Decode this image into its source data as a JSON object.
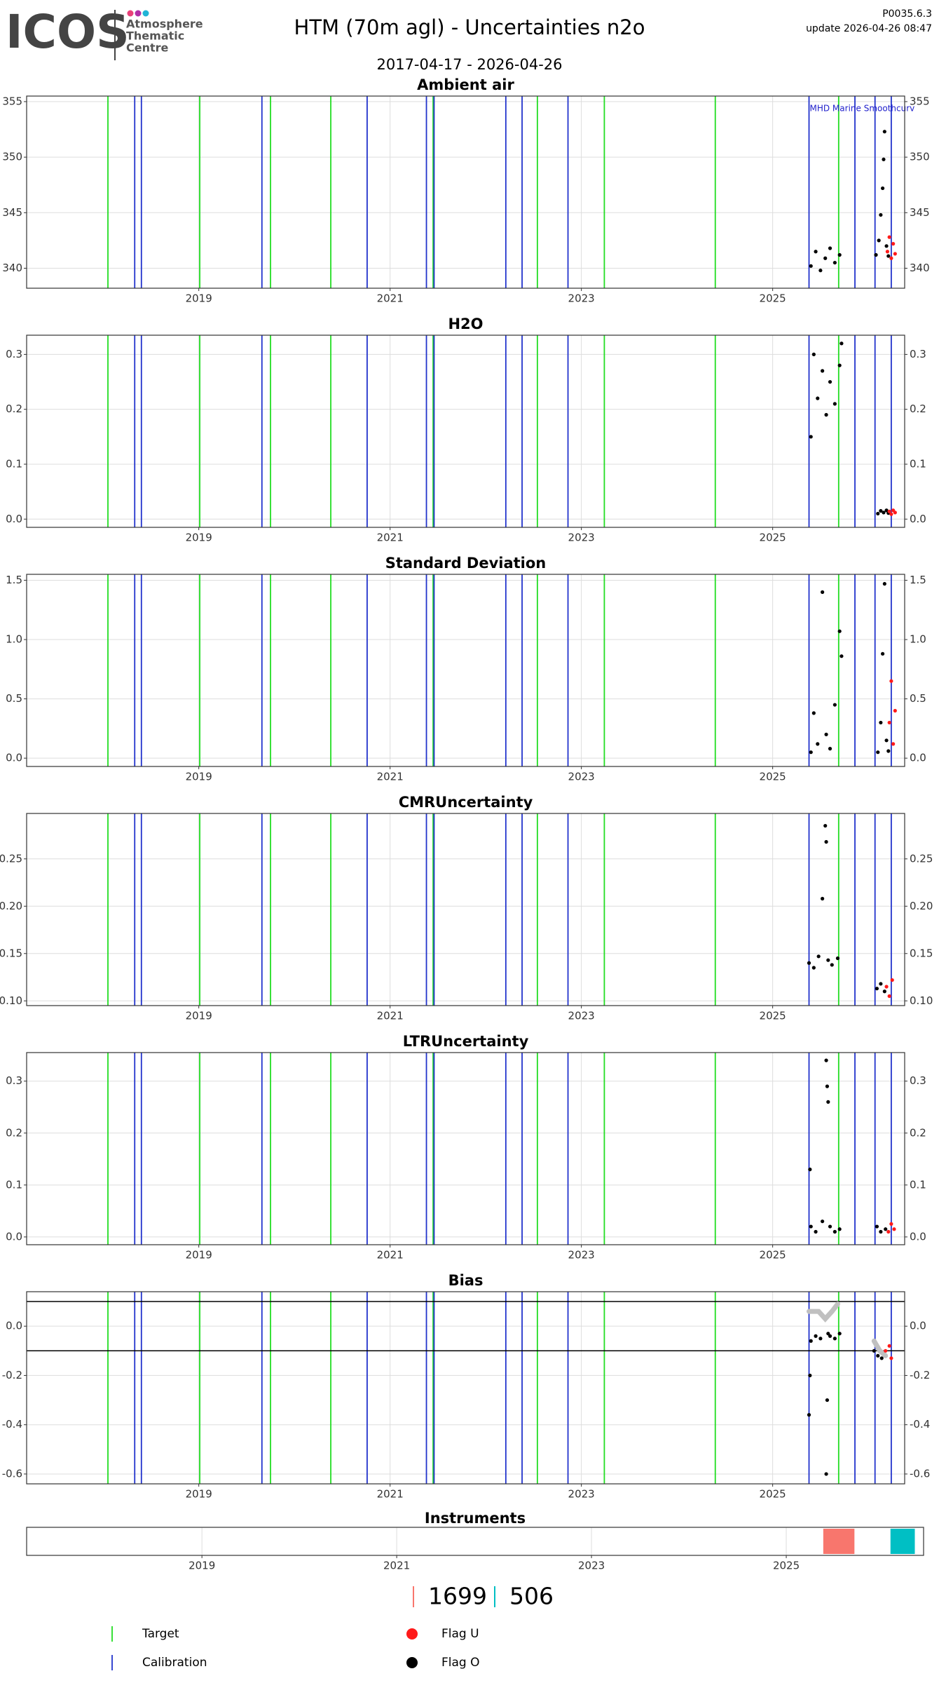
{
  "header": {
    "logo": "ICOS",
    "logo_sub": [
      "Atmosphere",
      "Thematic",
      "Centre"
    ],
    "title": "HTM  (70m agl) - Uncertainties n2o",
    "subtitle": "2017-04-17 - 2026-04-26",
    "version": "P0035.6.3",
    "update": "update  2026-04-26 08:47"
  },
  "reference_lines": {
    "target": {
      "name": "Target",
      "color": "#22dd22",
      "x": [
        2018.05,
        2019.01,
        2019.75,
        2020.38,
        2021.45,
        2022.54,
        2023.24,
        2024.4,
        2025.69
      ]
    },
    "calibration": {
      "name": "Calibration",
      "color": "#2233cc",
      "x": [
        2018.33,
        2018.4,
        2019.66,
        2020.76,
        2021.38,
        2021.46,
        2022.21,
        2022.38,
        2022.86,
        2025.38,
        2025.86,
        2026.07,
        2026.24
      ]
    }
  },
  "chart_data": [
    {
      "type": "scatter",
      "title": "Ambient air",
      "annotation": "MHD Marine Smoothcurv",
      "xlim": [
        2017.2,
        2026.38
      ],
      "xticks": [
        2019,
        2021,
        2023,
        2025
      ],
      "ylim": [
        338.2,
        355.5
      ],
      "yticks": [
        340,
        345,
        350,
        355
      ],
      "grid": true,
      "series": [
        {
          "name": "Flag O",
          "color": "#000000",
          "x": [
            2025.4,
            2025.45,
            2025.5,
            2025.55,
            2025.6,
            2025.65,
            2025.7,
            2026.08,
            2026.11,
            2026.13,
            2026.15,
            2026.16,
            2026.17,
            2026.19,
            2026.21
          ],
          "values": [
            340.2,
            341.5,
            339.8,
            340.9,
            341.8,
            340.5,
            341.2,
            341.2,
            342.5,
            344.8,
            347.2,
            349.8,
            352.3,
            342.0,
            341.1
          ]
        },
        {
          "name": "Flag U",
          "color": "#ff1a1a",
          "x": [
            2026.2,
            2026.22,
            2026.24,
            2026.26,
            2026.28
          ],
          "values": [
            341.5,
            342.8,
            340.9,
            342.2,
            341.3
          ]
        }
      ]
    },
    {
      "type": "scatter",
      "title": "H2O",
      "xlim": [
        2017.2,
        2026.38
      ],
      "xticks": [
        2019,
        2021,
        2023,
        2025
      ],
      "ylim": [
        -0.015,
        0.335
      ],
      "yticks": [
        {
          "value": 0,
          "label": "0.0"
        },
        0.1,
        0.2,
        0.3
      ],
      "grid": true,
      "series": [
        {
          "name": "Flag O",
          "color": "#000000",
          "x": [
            2025.4,
            2025.43,
            2025.47,
            2025.52,
            2025.56,
            2025.6,
            2025.65,
            2025.7,
            2025.72,
            2026.1,
            2026.13,
            2026.16,
            2026.19,
            2026.21
          ],
          "values": [
            0.15,
            0.3,
            0.22,
            0.27,
            0.19,
            0.25,
            0.21,
            0.28,
            0.32,
            0.01,
            0.015,
            0.012,
            0.016,
            0.011
          ]
        },
        {
          "name": "Flag U",
          "color": "#ff1a1a",
          "x": [
            2026.22,
            2026.24,
            2026.26,
            2026.28
          ],
          "values": [
            0.014,
            0.009,
            0.016,
            0.012
          ]
        }
      ]
    },
    {
      "type": "scatter",
      "title": "Standard Deviation",
      "xlim": [
        2017.2,
        2026.38
      ],
      "xticks": [
        2019,
        2021,
        2023,
        2025
      ],
      "ylim": [
        -0.07,
        1.55
      ],
      "yticks": [
        {
          "value": 0,
          "label": "0.0"
        },
        0.5,
        {
          "value": 1,
          "label": "1.0"
        },
        1.5
      ],
      "grid": true,
      "series": [
        {
          "name": "Flag O",
          "color": "#000000",
          "x": [
            2025.4,
            2025.43,
            2025.47,
            2025.52,
            2025.56,
            2025.6,
            2025.65,
            2025.7,
            2025.72,
            2026.1,
            2026.13,
            2026.15,
            2026.17,
            2026.19,
            2026.21
          ],
          "values": [
            0.05,
            0.38,
            0.12,
            1.4,
            0.2,
            0.08,
            0.45,
            1.07,
            0.86,
            0.05,
            0.3,
            0.88,
            1.47,
            0.15,
            0.06
          ]
        },
        {
          "name": "Flag U",
          "color": "#ff1a1a",
          "x": [
            2026.22,
            2026.24,
            2026.26,
            2026.28
          ],
          "values": [
            0.3,
            0.65,
            0.12,
            0.4
          ]
        }
      ]
    },
    {
      "type": "scatter",
      "title": "CMRUncertainty",
      "xlim": [
        2017.2,
        2026.38
      ],
      "xticks": [
        2019,
        2021,
        2023,
        2025
      ],
      "ylim": [
        0.095,
        0.298
      ],
      "yticks": [
        {
          "value": 0.1,
          "label": "0.10"
        },
        0.15,
        {
          "value": 0.2,
          "label": "0.20"
        },
        0.25
      ],
      "grid": true,
      "series": [
        {
          "name": "Flag O",
          "color": "#000000",
          "x": [
            2025.38,
            2025.43,
            2025.48,
            2025.52,
            2025.55,
            2025.56,
            2025.58,
            2025.62,
            2025.68,
            2026.09,
            2026.13,
            2026.17
          ],
          "values": [
            0.14,
            0.135,
            0.147,
            0.208,
            0.285,
            0.268,
            0.143,
            0.138,
            0.145,
            0.113,
            0.118,
            0.11
          ]
        },
        {
          "name": "Flag U",
          "color": "#ff1a1a",
          "x": [
            2026.19,
            2026.22,
            2026.25
          ],
          "values": [
            0.115,
            0.105,
            0.122
          ]
        }
      ]
    },
    {
      "type": "scatter",
      "title": "LTRUncertainty",
      "xlim": [
        2017.2,
        2026.38
      ],
      "xticks": [
        2019,
        2021,
        2023,
        2025
      ],
      "ylim": [
        -0.015,
        0.355
      ],
      "yticks": [
        {
          "value": 0,
          "label": "0.0"
        },
        0.1,
        0.2,
        0.3
      ],
      "grid": true,
      "series": [
        {
          "name": "Flag O",
          "color": "#000000",
          "x": [
            2025.39,
            2025.4,
            2025.45,
            2025.52,
            2025.56,
            2025.57,
            2025.58,
            2025.6,
            2025.65,
            2025.7,
            2026.09,
            2026.13,
            2026.18
          ],
          "values": [
            0.13,
            0.02,
            0.01,
            0.03,
            0.34,
            0.29,
            0.26,
            0.02,
            0.01,
            0.015,
            0.02,
            0.01,
            0.015
          ]
        },
        {
          "name": "Flag U",
          "color": "#ff1a1a",
          "x": [
            2026.21,
            2026.24,
            2026.27
          ],
          "values": [
            0.01,
            0.025,
            0.015
          ]
        }
      ]
    },
    {
      "type": "scatter",
      "title": "Bias",
      "xlim": [
        2017.2,
        2026.38
      ],
      "xticks": [
        2019,
        2021,
        2023,
        2025
      ],
      "ylim": [
        -0.64,
        0.14
      ],
      "yticks": [
        {
          "value": 0,
          "label": "0.0"
        },
        -0.2,
        -0.4,
        -0.6
      ],
      "grid": true,
      "hlines": [
        0.1,
        -0.1
      ],
      "series": [
        {
          "style": "line",
          "color": "#c0c0c0",
          "x": [
            2025.38,
            2025.48,
            2025.55,
            2025.62,
            2025.68,
            2025.9,
            2026.06,
            2026.12,
            2026.18
          ],
          "values": [
            0.06,
            0.06,
            0.03,
            0.06,
            0.09,
            null,
            -0.06,
            -0.1,
            -0.12
          ]
        },
        {
          "name": "Flag O",
          "color": "#000000",
          "x": [
            2025.38,
            2025.39,
            2025.4,
            2025.45,
            2025.5,
            2025.56,
            2025.57,
            2025.58,
            2025.6,
            2025.65,
            2025.7,
            2026.06,
            2026.1,
            2026.14
          ],
          "values": [
            -0.36,
            -0.2,
            -0.06,
            -0.04,
            -0.05,
            -0.6,
            -0.3,
            -0.03,
            -0.04,
            -0.05,
            -0.03,
            -0.1,
            -0.12,
            -0.13
          ]
        },
        {
          "name": "Flag U",
          "color": "#ff1a1a",
          "x": [
            2026.18,
            2026.22,
            2026.24
          ],
          "values": [
            -0.1,
            -0.08,
            -0.13
          ]
        }
      ]
    },
    {
      "type": "timeline",
      "title": "Instruments",
      "xlim": [
        2017.2,
        2026.41
      ],
      "xticks": [
        2019,
        2021,
        2023,
        2025
      ],
      "grid": true,
      "series": [
        {
          "name": "1699",
          "color": "#f8766d",
          "start": 2025.38,
          "end": 2025.7
        },
        {
          "name": "506",
          "color": "#00bfc4",
          "start": 2026.07,
          "end": 2026.32
        }
      ]
    }
  ]
}
